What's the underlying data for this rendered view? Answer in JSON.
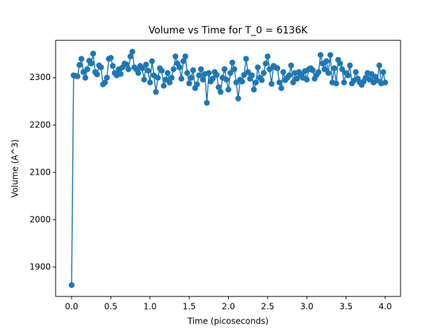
{
  "chart_data": {
    "type": "line",
    "title": "Volume vs Time for T_0 = 6136K",
    "x_label": "Time (picoseconds)",
    "y_label": "Volume (A^3)",
    "x": [
      0,
      0.025,
      0.05,
      0.075,
      0.1,
      0.125,
      0.15,
      0.175,
      0.2,
      0.225,
      0.25,
      0.275,
      0.3,
      0.325,
      0.35,
      0.375,
      0.4,
      0.425,
      0.45,
      0.475,
      0.5,
      0.525,
      0.55,
      0.575,
      0.6,
      0.625,
      0.65,
      0.675,
      0.7,
      0.725,
      0.75,
      0.775,
      0.8,
      0.825,
      0.85,
      0.875,
      0.9,
      0.925,
      0.95,
      0.975,
      1,
      1.025,
      1.05,
      1.075,
      1.1,
      1.125,
      1.15,
      1.175,
      1.2,
      1.225,
      1.25,
      1.275,
      1.3,
      1.325,
      1.35,
      1.375,
      1.4,
      1.425,
      1.45,
      1.475,
      1.5,
      1.525,
      1.55,
      1.575,
      1.6,
      1.625,
      1.65,
      1.675,
      1.7,
      1.725,
      1.75,
      1.775,
      1.8,
      1.825,
      1.85,
      1.875,
      1.9,
      1.925,
      1.95,
      1.975,
      2,
      2.025,
      2.05,
      2.075,
      2.1,
      2.125,
      2.15,
      2.175,
      2.2,
      2.225,
      2.25,
      2.275,
      2.3,
      2.325,
      2.35,
      2.375,
      2.4,
      2.425,
      2.45,
      2.475,
      2.5,
      2.525,
      2.55,
      2.575,
      2.6,
      2.625,
      2.65,
      2.675,
      2.7,
      2.725,
      2.75,
      2.775,
      2.8,
      2.825,
      2.85,
      2.875,
      2.9,
      2.925,
      2.95,
      2.975,
      3,
      3.025,
      3.05,
      3.075,
      3.1,
      3.125,
      3.15,
      3.175,
      3.2,
      3.225,
      3.25,
      3.275,
      3.3,
      3.325,
      3.35,
      3.375,
      3.4,
      3.425,
      3.45,
      3.475,
      3.5,
      3.525,
      3.55,
      3.575,
      3.6,
      3.625,
      3.65,
      3.675,
      3.7,
      3.725,
      3.75,
      3.775,
      3.8,
      3.825,
      3.85,
      3.875,
      3.9,
      3.925,
      3.95,
      3.975,
      4
    ],
    "series": [
      {
        "color": "#1f77b4",
        "values": [
          1862,
          2305,
          2304,
          2303,
          2327,
          2340,
          2312,
          2300,
          2318,
          2336,
          2330,
          2351,
          2312,
          2307,
          2326,
          2322,
          2286,
          2290,
          2300,
          2340,
          2342,
          2325,
          2310,
          2305,
          2318,
          2308,
          2322,
          2330,
          2328,
          2318,
          2345,
          2355,
          2322,
          2318,
          2310,
          2325,
          2320,
          2296,
          2328,
          2315,
          2290,
          2335,
          2305,
          2270,
          2300,
          2320,
          2315,
          2283,
          2296,
          2310,
          2290,
          2300,
          2318,
          2345,
          2330,
          2322,
          2298,
          2335,
          2345,
          2310,
          2288,
          2300,
          2316,
          2278,
          2286,
          2305,
          2318,
          2296,
          2308,
          2247,
          2310,
          2292,
          2298,
          2312,
          2306,
          2280,
          2270,
          2300,
          2318,
          2296,
          2275,
          2310,
          2332,
          2318,
          2290,
          2256,
          2296,
          2292,
          2306,
          2340,
          2312,
          2298,
          2305,
          2275,
          2290,
          2322,
          2300,
          2295,
          2310,
          2330,
          2345,
          2318,
          2287,
          2325,
          2322,
          2320,
          2290,
          2278,
          2312,
          2295,
          2300,
          2305,
          2326,
          2290,
          2310,
          2298,
          2312,
          2306,
          2300,
          2314,
          2296,
          2318,
          2320,
          2316,
          2298,
          2306,
          2312,
          2348,
          2330,
          2318,
          2335,
          2310,
          2348,
          2290,
          2320,
          2288,
          2338,
          2330,
          2318,
          2290,
          2310,
          2305,
          2326,
          2288,
          2294,
          2312,
          2298,
          2290,
          2285,
          2292,
          2300,
          2310,
          2296,
          2308,
          2290,
          2302,
          2294,
          2326,
          2288,
          2312,
          2290
        ]
      }
    ],
    "xlim": [
      -0.204,
      4.195
    ],
    "ylim": [
      1838,
      2379
    ],
    "xticks": [
      {
        "value": 0,
        "label": "0.0"
      },
      0.5,
      {
        "value": 1,
        "label": "1.0"
      },
      1.5,
      {
        "value": 2,
        "label": "2.0"
      },
      2.5,
      {
        "value": 3,
        "label": "3.0"
      },
      3.5,
      {
        "value": 4,
        "label": "4.0"
      }
    ],
    "yticks": [
      1900,
      2000,
      2100,
      2200,
      2300
    ]
  }
}
